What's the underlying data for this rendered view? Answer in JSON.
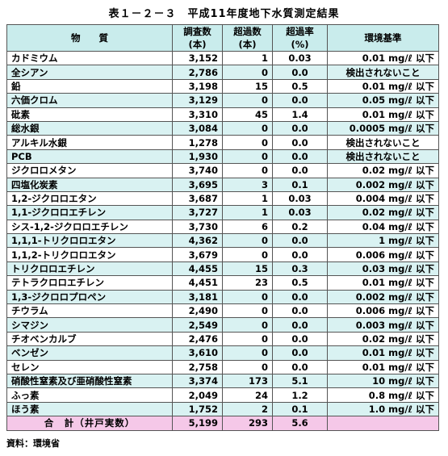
{
  "title": "表１－２－３　平成11年度地下水質測定結果",
  "headers": {
    "substance": "物　　質",
    "surveyed_1": "調査数",
    "surveyed_2": "(本)",
    "exceed_1": "超過数",
    "exceed_2": "(本)",
    "rate_1": "超過率",
    "rate_2": "(%)",
    "standard": "環境基準"
  },
  "rows": [
    {
      "substance": "カドミウム",
      "surveyed": "3,152",
      "exceed": "1",
      "rate": "0.03",
      "standard": "0.01 mg/ℓ 以下"
    },
    {
      "substance": "全シアン",
      "surveyed": "2,786",
      "exceed": "0",
      "rate": "0.0",
      "standard": "検出されないこと"
    },
    {
      "substance": "鉛",
      "surveyed": "3,198",
      "exceed": "15",
      "rate": "0.5",
      "standard": "0.01 mg/ℓ 以下"
    },
    {
      "substance": "六価クロム",
      "surveyed": "3,129",
      "exceed": "0",
      "rate": "0.0",
      "standard": "0.05 mg/ℓ 以下"
    },
    {
      "substance": "砒素",
      "surveyed": "3,310",
      "exceed": "45",
      "rate": "1.4",
      "standard": "0.01 mg/ℓ 以下"
    },
    {
      "substance": "総水銀",
      "surveyed": "3,084",
      "exceed": "0",
      "rate": "0.0",
      "standard": "0.0005 mg/ℓ 以下"
    },
    {
      "substance": "アルキル水銀",
      "surveyed": "1,278",
      "exceed": "0",
      "rate": "0.0",
      "standard": "検出されないこと"
    },
    {
      "substance": "PCB",
      "surveyed": "1,930",
      "exceed": "0",
      "rate": "0.0",
      "standard": "検出されないこと"
    },
    {
      "substance": "ジクロロメタン",
      "surveyed": "3,740",
      "exceed": "0",
      "rate": "0.0",
      "standard": "0.02 mg/ℓ 以下"
    },
    {
      "substance": "四塩化炭素",
      "surveyed": "3,695",
      "exceed": "3",
      "rate": "0.1",
      "standard": "0.002 mg/ℓ 以下"
    },
    {
      "substance": "1,2-ジクロロエタン",
      "surveyed": "3,687",
      "exceed": "1",
      "rate": "0.03",
      "standard": "0.004 mg/ℓ 以下"
    },
    {
      "substance": "1,1-ジクロロエチレン",
      "surveyed": "3,727",
      "exceed": "1",
      "rate": "0.03",
      "standard": "0.02 mg/ℓ 以下"
    },
    {
      "substance": "シス-1,2-ジクロロエチレン",
      "surveyed": "3,730",
      "exceed": "6",
      "rate": "0.2",
      "standard": "0.04 mg/ℓ 以下"
    },
    {
      "substance": "1,1,1-トリクロロエタン",
      "surveyed": "4,362",
      "exceed": "0",
      "rate": "0.0",
      "standard": "1 mg/ℓ 以下"
    },
    {
      "substance": "1,1,2-トリクロロエタン",
      "surveyed": "3,679",
      "exceed": "0",
      "rate": "0.0",
      "standard": "0.006 mg/ℓ 以下"
    },
    {
      "substance": "トリクロロエチレン",
      "surveyed": "4,455",
      "exceed": "15",
      "rate": "0.3",
      "standard": "0.03 mg/ℓ 以下"
    },
    {
      "substance": "テトラクロロエチレン",
      "surveyed": "4,451",
      "exceed": "23",
      "rate": "0.5",
      "standard": "0.01 mg/ℓ 以下"
    },
    {
      "substance": "1,3-ジクロロプロペン",
      "surveyed": "3,181",
      "exceed": "0",
      "rate": "0.0",
      "standard": "0.002 mg/ℓ 以下"
    },
    {
      "substance": "チウラム",
      "surveyed": "2,490",
      "exceed": "0",
      "rate": "0.0",
      "standard": "0.006 mg/ℓ 以下"
    },
    {
      "substance": "シマジン",
      "surveyed": "2,549",
      "exceed": "0",
      "rate": "0.0",
      "standard": "0.003 mg/ℓ 以下"
    },
    {
      "substance": "チオベンカルブ",
      "surveyed": "2,476",
      "exceed": "0",
      "rate": "0.0",
      "standard": "0.02 mg/ℓ 以下"
    },
    {
      "substance": "ベンゼン",
      "surveyed": "3,610",
      "exceed": "0",
      "rate": "0.0",
      "standard": "0.01 mg/ℓ 以下"
    },
    {
      "substance": "セレン",
      "surveyed": "2,758",
      "exceed": "0",
      "rate": "0.0",
      "standard": "0.01 mg/ℓ 以下"
    },
    {
      "substance": "硝酸性窒素及び亜硝酸性窒素",
      "surveyed": "3,374",
      "exceed": "173",
      "rate": "5.1",
      "standard": "10 mg/ℓ 以下"
    },
    {
      "substance": "ふっ素",
      "surveyed": "2,049",
      "exceed": "24",
      "rate": "1.2",
      "standard": "0.8 mg/ℓ 以下"
    },
    {
      "substance": "ほう素",
      "surveyed": "1,752",
      "exceed": "2",
      "rate": "0.1",
      "standard": "1.0 mg/ℓ 以下"
    }
  ],
  "total": {
    "label": "合　計（井戸実数）",
    "surveyed": "5,199",
    "exceed": "293",
    "rate": "5.6",
    "standard": ""
  },
  "source": "資料：環境省",
  "colors": {
    "header_bg": "#c9ecec",
    "stripe_bg": "#d9f2f2",
    "total_bg": "#f5c8e8"
  }
}
